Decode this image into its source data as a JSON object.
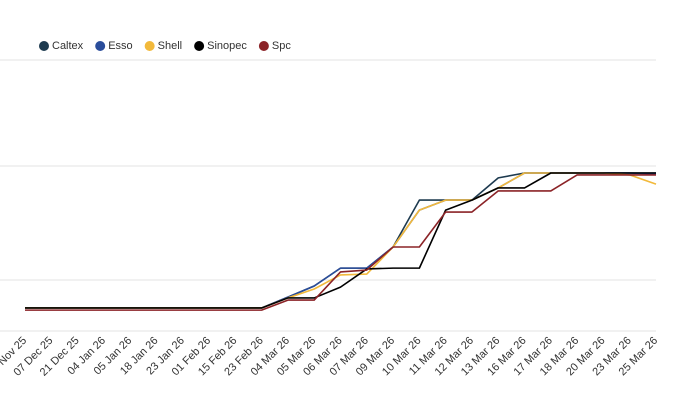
{
  "chart_data": {
    "type": "line",
    "categories": [
      "Nov 25",
      "07 Dec 25",
      "21 Dec 25",
      "04 Jan 26",
      "05 Jan 26",
      "18 Jan 26",
      "23 Jan 26",
      "01 Feb 26",
      "15 Feb 26",
      "23 Feb 26",
      "04 Mar 26",
      "05 Mar 26",
      "06 Mar 26",
      "07 Mar 26",
      "09 Mar 26",
      "10 Mar 26",
      "11 Mar 26",
      "12 Mar 26",
      "13 Mar 26",
      "16 Mar 26",
      "17 Mar 26",
      "18 Mar 26",
      "20 Mar 26",
      "23 Mar 26",
      "25 Mar 26"
    ],
    "series": [
      {
        "name": "Caltex",
        "color": "#1d3a4f",
        "values": [
          8.5,
          8.5,
          8.5,
          8.5,
          8.5,
          8.5,
          8.5,
          8.5,
          8.5,
          8.5,
          12.5,
          16.6,
          23.2,
          23.2,
          31.0,
          48.3,
          48.3,
          48.3,
          56.5,
          58.3,
          58.3,
          58.3,
          58.3,
          58.3,
          58.3
        ]
      },
      {
        "name": "Esso",
        "color": "#2a4d9b",
        "values": [
          8.5,
          8.5,
          8.5,
          8.5,
          8.5,
          8.5,
          8.5,
          8.5,
          8.5,
          8.5,
          12.5,
          16.6,
          23.2,
          23.2,
          31.0,
          44.6,
          48.3,
          48.3,
          52.8,
          58.3,
          58.3,
          58.3,
          58.3,
          58.3,
          57.9
        ]
      },
      {
        "name": "Shell",
        "color": "#f2b93b",
        "values": [
          8.5,
          8.5,
          8.5,
          8.5,
          8.5,
          8.5,
          8.5,
          8.5,
          8.5,
          8.5,
          12.2,
          15.5,
          20.7,
          21.0,
          31.0,
          44.6,
          48.3,
          48.3,
          52.8,
          58.3,
          58.3,
          58.3,
          58.3,
          57.6,
          54.2
        ]
      },
      {
        "name": "Sinopec",
        "color": "#000000",
        "values": [
          8.5,
          8.5,
          8.5,
          8.5,
          8.5,
          8.5,
          8.5,
          8.5,
          8.5,
          8.5,
          12.2,
          12.2,
          16.2,
          22.9,
          23.2,
          23.2,
          44.6,
          48.3,
          52.8,
          52.8,
          58.3,
          58.3,
          58.3,
          58.3,
          58.3
        ]
      },
      {
        "name": "Spc",
        "color": "#8b2327",
        "values": [
          7.7,
          7.7,
          7.7,
          7.7,
          7.7,
          7.7,
          7.7,
          7.7,
          7.7,
          7.7,
          11.4,
          11.4,
          21.8,
          22.5,
          31.0,
          31.0,
          43.9,
          43.9,
          51.7,
          51.7,
          51.7,
          57.6,
          57.6,
          57.6,
          57.6
        ]
      }
    ],
    "ylim": [
      0,
      100
    ],
    "yticks": [
      18.8,
      60.9,
      100
    ],
    "grid": true
  }
}
